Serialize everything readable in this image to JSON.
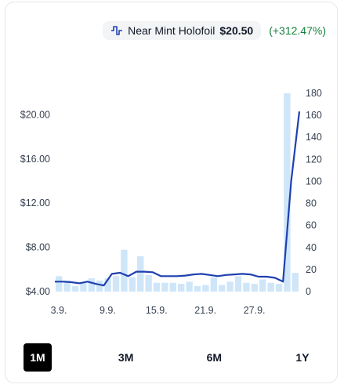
{
  "header": {
    "variant_label": "Near Mint Holofoil",
    "price": "$20.50",
    "change": "(+312.47%)",
    "change_color": "#15803d",
    "icon": "price-chart-icon"
  },
  "ranges": [
    {
      "label": "1M",
      "active": true
    },
    {
      "label": "3M",
      "active": false
    },
    {
      "label": "6M",
      "active": false
    },
    {
      "label": "1Y",
      "active": false
    }
  ],
  "chart_data": {
    "type": "bar+line",
    "x_ticks": [
      "3.9.",
      "9.9.",
      "15.9.",
      "21.9.",
      "27.9."
    ],
    "y_left_ticks": [
      "$4.00",
      "$8.00",
      "$12.00",
      "$16.00",
      "$20.00"
    ],
    "y_left_range": [
      4,
      21
    ],
    "y_right_ticks": [
      "0",
      "20",
      "40",
      "60",
      "80",
      "100",
      "120",
      "140",
      "160",
      "180"
    ],
    "y_right_range": [
      0,
      180
    ],
    "series": [
      {
        "kind": "bar",
        "axis": "right",
        "color": "#cfe6f9",
        "values": [
          14,
          10,
          5,
          8,
          12,
          10,
          12,
          14,
          38,
          13,
          32,
          15,
          8,
          8,
          8,
          7,
          9,
          5,
          6,
          13,
          6,
          9,
          14,
          8,
          7,
          11,
          8,
          7,
          180,
          17
        ]
      },
      {
        "kind": "line",
        "axis": "left",
        "color": "#1e40af",
        "values": [
          4.9,
          4.9,
          4.85,
          4.75,
          4.9,
          4.7,
          4.55,
          5.6,
          5.7,
          5.4,
          5.8,
          5.8,
          5.75,
          5.4,
          5.4,
          5.4,
          5.45,
          5.55,
          5.6,
          5.5,
          5.4,
          5.5,
          5.55,
          5.6,
          5.55,
          5.35,
          5.35,
          5.25,
          4.9,
          14.0,
          20.3
        ]
      }
    ],
    "grid": false,
    "legend": "none"
  }
}
